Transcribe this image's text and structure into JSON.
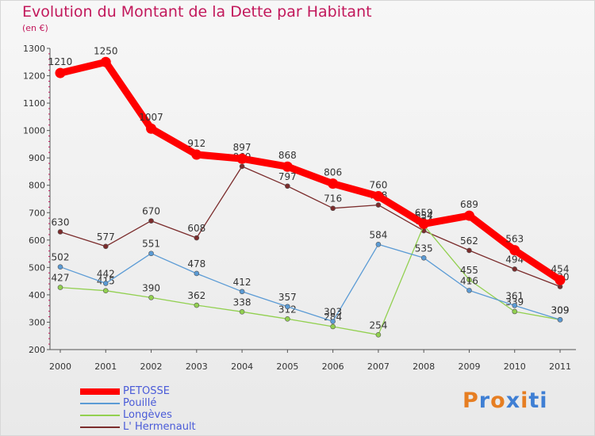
{
  "header": {
    "title": "Evolution du Montant de la Dette par Habitant",
    "subtitle": "(en €)"
  },
  "logo": {
    "p1": "P",
    "p2": "r",
    "p3": "o",
    "p4": "x",
    "p5": "i",
    "p6": "ti"
  },
  "chart_data": {
    "type": "line",
    "title": "Evolution du Montant de la Dette par Habitant",
    "subtitle": "(en €)",
    "x": [
      "2000",
      "2001",
      "2002",
      "2003",
      "2004",
      "2005",
      "2006",
      "2007",
      "2008",
      "2009",
      "2010",
      "2011"
    ],
    "ylim": [
      200,
      1300
    ],
    "yticks": [
      200,
      300,
      400,
      500,
      600,
      700,
      800,
      900,
      1000,
      1100,
      1200,
      1300
    ],
    "grid": false,
    "legend_position": "bottom-left",
    "series": [
      {
        "name": "PETOSSE",
        "color": "#ff0000",
        "values": [
          1210,
          1250,
          1007,
          912,
          897,
          868,
          806,
          760,
          659,
          689,
          563,
          454
        ]
      },
      {
        "name": "Pouillé",
        "color": "#5b9bd5",
        "values": [
          502,
          442,
          551,
          478,
          412,
          357,
          303,
          584,
          535,
          416,
          361,
          309
        ]
      },
      {
        "name": "Longèves",
        "color": "#92d050",
        "values": [
          427,
          415,
          390,
          362,
          338,
          312,
          284,
          254,
          654,
          455,
          339,
          309
        ]
      },
      {
        "name": "L' Hermenault",
        "color": "#7b2c2c",
        "values": [
          630,
          577,
          670,
          608,
          869,
          797,
          716,
          728,
          634,
          562,
          494,
          430
        ]
      }
    ]
  }
}
